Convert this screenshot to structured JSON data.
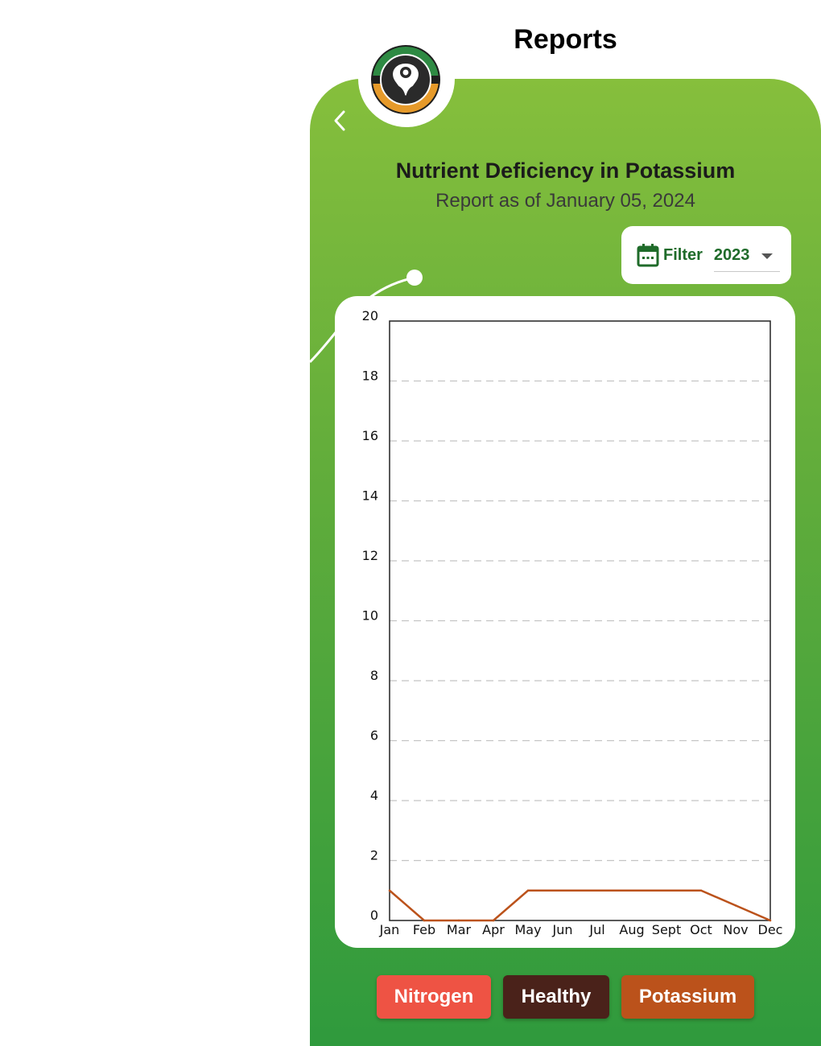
{
  "header": {
    "title": "Reports"
  },
  "icons": {
    "back": "chevron-left-icon",
    "logo": "plant-logo-icon",
    "calendar": "calendar-icon",
    "dropdown": "caret-down-icon"
  },
  "report": {
    "title": "Nutrient Deficiency in Potassium",
    "subtitle": "Report as of January 05, 2024"
  },
  "filter": {
    "label": "Filter",
    "year": "2023"
  },
  "colors": {
    "panel_top": "#86bf3c",
    "panel_bottom": "#2f9a3d",
    "accent_green": "#1f6b2a",
    "nitrogen": "#ee5344",
    "healthy": "#4a221a",
    "potassium": "#bb521b"
  },
  "chart_data": {
    "type": "line",
    "categories": [
      "Jan",
      "Feb",
      "Mar",
      "Apr",
      "May",
      "Jun",
      "Jul",
      "Aug",
      "Sept",
      "Oct",
      "Nov",
      "Dec"
    ],
    "series": [
      {
        "values": [
          1,
          0,
          0,
          0,
          1,
          1,
          1,
          1,
          1,
          1,
          0.5,
          0
        ]
      }
    ],
    "yticks": [
      "0",
      "2",
      "4",
      "6",
      "8",
      "10",
      "12",
      "14",
      "16",
      "18",
      "20"
    ],
    "ylim": [
      0,
      20
    ],
    "grid": "horizontal-dashed"
  },
  "legend": {
    "items": [
      {
        "label": "Nitrogen"
      },
      {
        "label": "Healthy"
      },
      {
        "label": "Potassium"
      }
    ]
  }
}
